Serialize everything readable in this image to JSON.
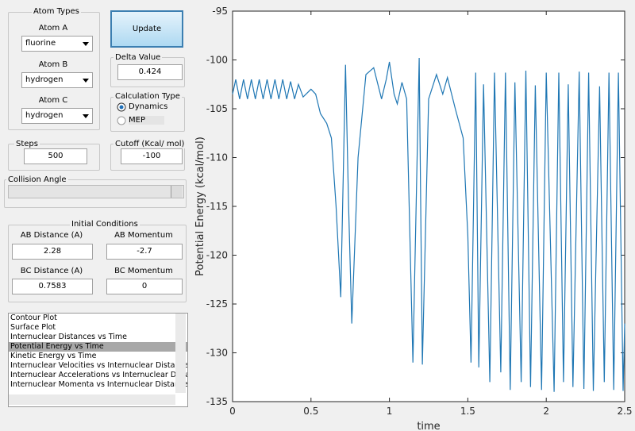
{
  "ui": {
    "atom_types": {
      "title": "Atom Types",
      "atom_a_label": "Atom A",
      "atom_a": "fluorine",
      "atom_b_label": "Atom B",
      "atom_b": "hydrogen",
      "atom_c_label": "Atom C",
      "atom_c": "hydrogen"
    },
    "update": "Update",
    "delta": {
      "label": "Delta Value",
      "value": "0.424"
    },
    "calc_type": {
      "title": "Calculation Type",
      "options": [
        "Dynamics",
        "MEP"
      ]
    },
    "steps": {
      "label": "Steps",
      "value": "500"
    },
    "cutoff": {
      "label": "Cutoff (Kcal/ mol)",
      "value": "-100"
    },
    "collision_angle": "Collision Angle",
    "initial": {
      "title": "Initial Conditions",
      "ab_dist_label": "AB Distance (A)",
      "ab_dist": "2.28",
      "ab_mom_label": "AB Momentum",
      "ab_mom": "-2.7",
      "bc_dist_label": "BC Distance (A)",
      "bc_dist": "0.7583",
      "bc_mom_label": "BC Momentum",
      "bc_mom": "0"
    },
    "plot_list": [
      "Contour Plot",
      "Surface Plot",
      "Internuclear Distances vs Time",
      "Potential Energy vs Time",
      "Kinetic Energy vs Time",
      "Internuclear Velocities vs Internuclear Distance",
      "Internuclear Accelerations vs Internuclear Distance",
      "Internuclear Momenta vs Internuclear Distance"
    ]
  },
  "chart_data": {
    "type": "line",
    "x_label": "time",
    "y_label": "Potential Energy (kcal/mol)",
    "xlim": [
      0,
      2.5
    ],
    "xticks": [
      0,
      0.5,
      1,
      1.5,
      2,
      2.5
    ],
    "ylim": [
      -135,
      -95
    ],
    "yticks": [
      -95,
      -100,
      -105,
      -110,
      -115,
      -120,
      -125,
      -130,
      -135
    ],
    "series": [
      {
        "color": "#1f77b4",
        "x": [
          0,
          0.02,
          0.045,
          0.07,
          0.095,
          0.12,
          0.145,
          0.17,
          0.195,
          0.22,
          0.245,
          0.27,
          0.295,
          0.32,
          0.345,
          0.37,
          0.395,
          0.42,
          0.45,
          0.5,
          0.53,
          0.56,
          0.6,
          0.63,
          0.66,
          0.69,
          0.72,
          0.74,
          0.76,
          0.8,
          0.85,
          0.9,
          0.95,
          0.98,
          1.0,
          1.03,
          1.05,
          1.08,
          1.11,
          1.15,
          1.19,
          1.21,
          1.25,
          1.3,
          1.34,
          1.37,
          1.42,
          1.47,
          1.5,
          1.52,
          1.55,
          1.57,
          1.6,
          1.64,
          1.67,
          1.71,
          1.74,
          1.77,
          1.8,
          1.84,
          1.87,
          1.9,
          1.93,
          1.97,
          2.0,
          2.05,
          2.08,
          2.11,
          2.14,
          2.17,
          2.21,
          2.24,
          2.27,
          2.3,
          2.34,
          2.37,
          2.4,
          2.43,
          2.46,
          2.49,
          2.5
        ],
        "values": [
          -103.5,
          -102,
          -104,
          -102,
          -104,
          -102,
          -104,
          -102,
          -104,
          -102,
          -104,
          -102,
          -104,
          -102,
          -104,
          -102.2,
          -104,
          -102.5,
          -103.8,
          -103,
          -103.5,
          -105.5,
          -106.5,
          -108,
          -115,
          -124.3,
          -100.5,
          -115,
          -127,
          -110,
          -101.5,
          -100.8,
          -104,
          -102,
          -100.2,
          -103.5,
          -104.5,
          -102.3,
          -104,
          -131,
          -99.8,
          -131.2,
          -104,
          -101.5,
          -103.5,
          -101.8,
          -105,
          -108,
          -118,
          -131,
          -101.3,
          -131.5,
          -102.5,
          -133,
          -101.3,
          -132,
          -101.3,
          -133.8,
          -102.3,
          -133,
          -101.1,
          -133.5,
          -102.6,
          -133.8,
          -101.3,
          -134,
          -101.3,
          -133,
          -102.5,
          -133.5,
          -101.2,
          -133.7,
          -101.3,
          -133.9,
          -102.7,
          -133,
          -101.3,
          -133.8,
          -101.3,
          -133.9,
          -127
        ]
      }
    ]
  }
}
